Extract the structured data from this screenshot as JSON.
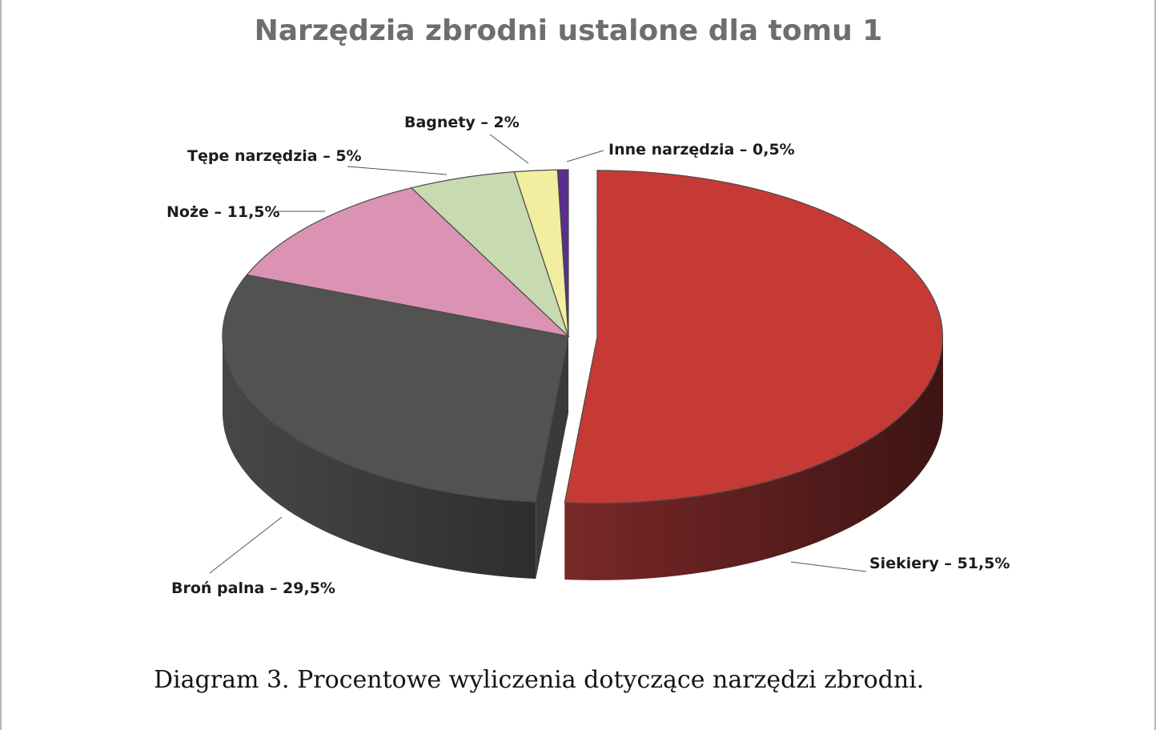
{
  "chart_data": {
    "type": "pie",
    "title": "Narzędzia zbrodni ustalone dla tomu 1",
    "three_d": true,
    "exploded_slice": "Siekiery",
    "slices": [
      {
        "name": "Siekiery",
        "value": 51.5,
        "label": "Siekiery – 51,5%",
        "color": "#c63a35",
        "side_color": "#5e1c1c"
      },
      {
        "name": "Broń palna",
        "value": 29.5,
        "label": "Broń palna – 29,5%",
        "color": "#525252",
        "side_color": "#3b3b3b"
      },
      {
        "name": "Noże",
        "value": 11.5,
        "label": "Noże – 11,5%",
        "color": "#db93b3",
        "side_color": "#8a5a70"
      },
      {
        "name": "Tępe narzędzia",
        "value": 5,
        "label": "Tępe narzędzia – 5%",
        "color": "#c7dab0",
        "side_color": "#7f8c6f"
      },
      {
        "name": "Bagnety",
        "value": 2,
        "label": "Bagnety – 2%",
        "color": "#f2eea0",
        "side_color": "#9c9966"
      },
      {
        "name": "Inne narzędzia",
        "value": 0.5,
        "label": "Inne narzędzia – 0,5%",
        "color": "#5a2e8c",
        "side_color": "#381c58"
      }
    ]
  },
  "caption": "Diagram 3. Procentowe wyliczenia dotyczące narzędzi zbrodni."
}
